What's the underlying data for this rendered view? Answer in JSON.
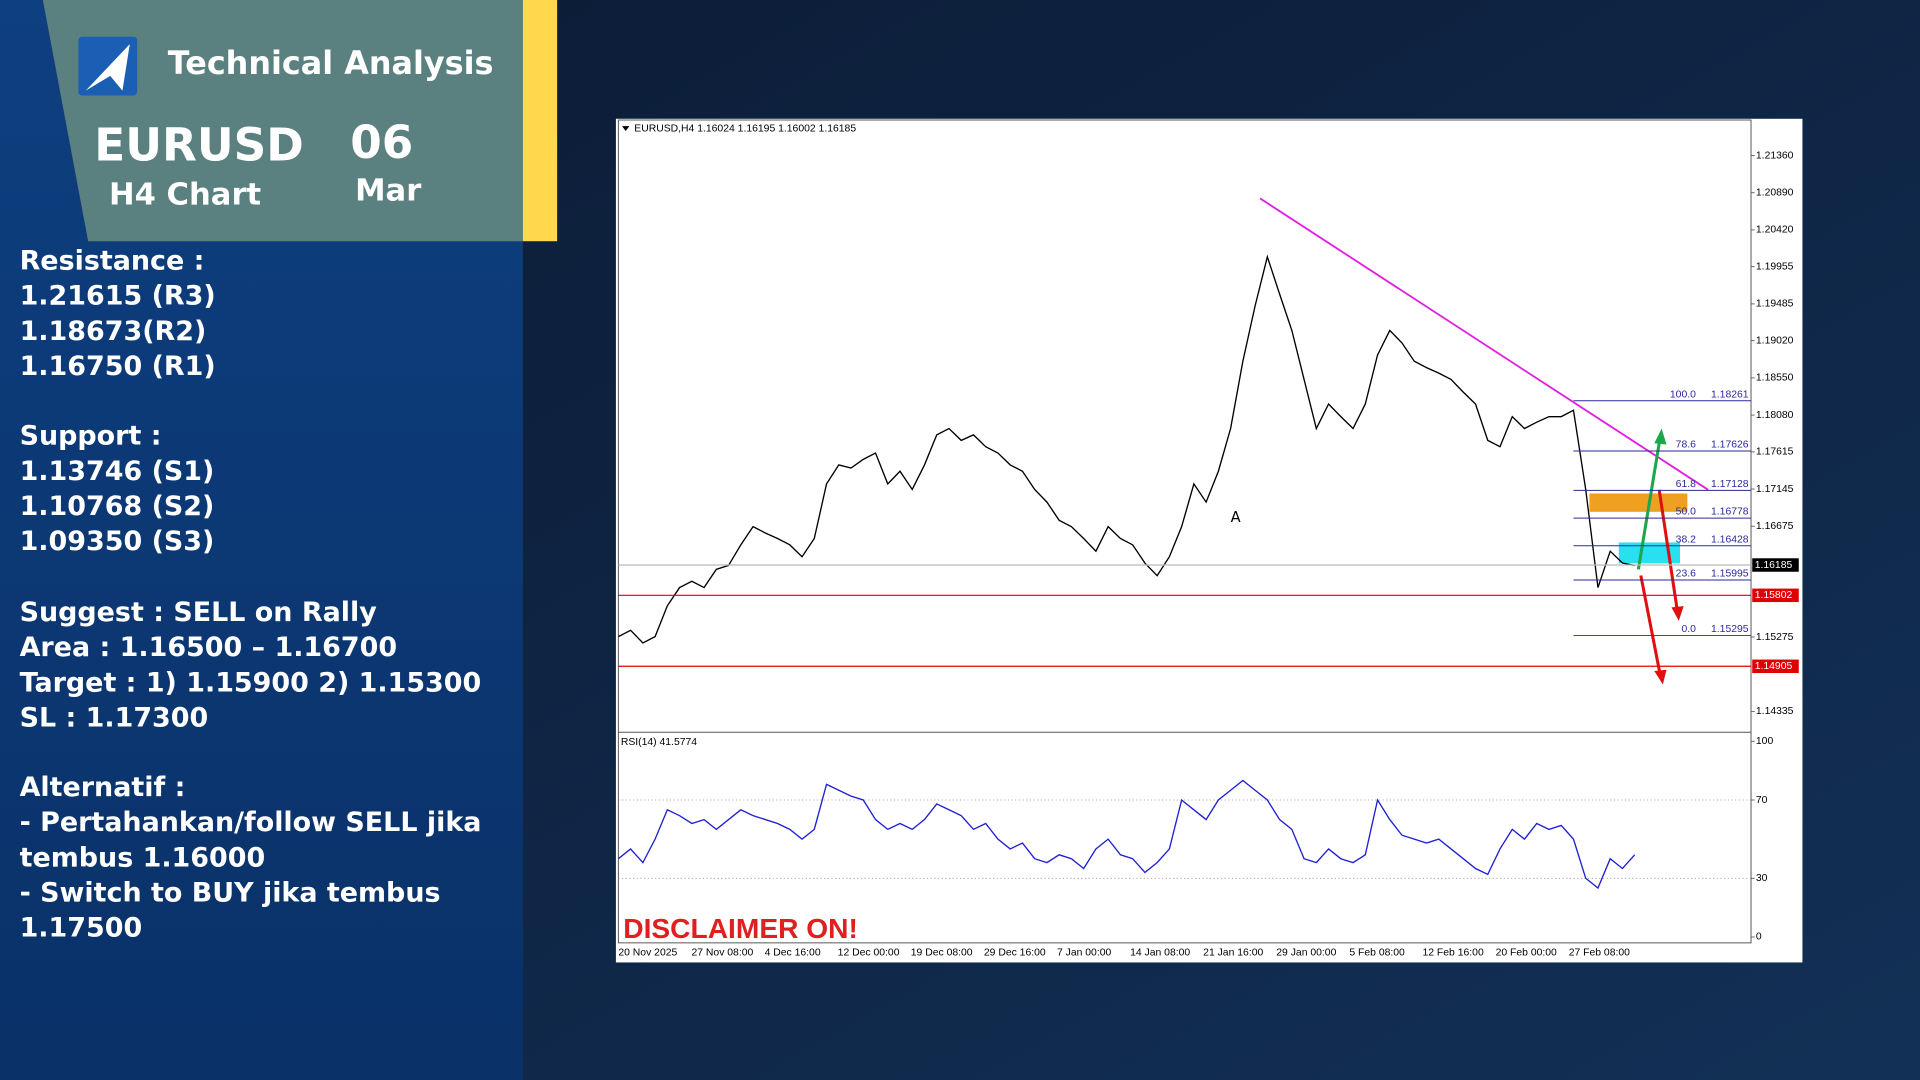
{
  "header": {
    "title": "Technical Analysis",
    "symbol": "EURUSD",
    "timeframe": "H4 Chart",
    "day": "06",
    "month": "Mar"
  },
  "notes": [
    [
      "Resistance :",
      "1.21615 (R3)",
      "1.18673(R2)",
      "1.16750 (R1)"
    ],
    [
      "Support :",
      "1.13746 (S1)",
      "1.10768  (S2)",
      "1.09350  (S3)"
    ],
    [
      "Suggest :  SELL on Rally",
      "Area : 1.16500 – 1.16700",
      "Target : 1) 1.15900 2) 1.15300",
      "SL : 1.17300"
    ],
    [
      "Alternatif :",
      "- Pertahankan/follow SELL jika",
      "tembus 1.16000",
      "- Switch to BUY jika tembus",
      "1.17500"
    ]
  ],
  "chart_data": [
    {
      "type": "line",
      "title": "EURUSD,H4  1.16024 1.16195 1.16002 1.16185",
      "annotation": "A",
      "ylim": [
        1.14087,
        1.21809
      ],
      "yticks": [
        {
          "value": 1.2136,
          "label": "1.21360"
        },
        {
          "value": 1.2089,
          "label": "1.20890"
        },
        {
          "value": 1.2042,
          "label": "1.20420"
        },
        1.19955,
        1.19485,
        {
          "value": 1.1902,
          "label": "1.19020"
        },
        {
          "value": 1.1855,
          "label": "1.18550"
        },
        {
          "value": 1.1808,
          "label": "1.18080"
        },
        1.17615,
        1.17145,
        1.16675,
        1.15275,
        1.14335
      ],
      "series": [
        {
          "color": "#000000",
          "values": [
            1.1528,
            1.1536,
            1.152,
            1.1528,
            1.1567,
            1.159,
            1.1598,
            1.159,
            1.1613,
            1.1618,
            1.1644,
            1.1667,
            1.1659,
            1.1652,
            1.1644,
            1.1629,
            1.1652,
            1.1721,
            1.1745,
            1.1741,
            1.1752,
            1.176,
            1.1721,
            1.1737,
            1.1714,
            1.1745,
            1.1783,
            1.1791,
            1.1776,
            1.1783,
            1.1768,
            1.176,
            1.1745,
            1.1737,
            1.1714,
            1.1698,
            1.1675,
            1.1667,
            1.1652,
            1.1636,
            1.1667,
            1.1652,
            1.1644,
            1.1621,
            1.1605,
            1.1629,
            1.1667,
            1.1721,
            1.1698,
            1.1737,
            1.1791,
            1.1876,
            1.1946,
            1.2008,
            1.1961,
            1.1915,
            1.1853,
            1.1791,
            1.1822,
            1.1806,
            1.1791,
            1.1822,
            1.1884,
            1.1915,
            1.1899,
            1.1876,
            1.1868,
            1.1861,
            1.1853,
            1.1837,
            1.1822,
            1.1776,
            1.1768,
            1.1806,
            1.1791,
            1.1799,
            1.1806,
            1.1806,
            1.1814,
            1.1714,
            1.159,
            1.1636,
            1.1621,
            1.1618
          ]
        }
      ],
      "levels": [
        {
          "value": 1.16185,
          "color": "#000000"
        },
        {
          "value": 1.15802,
          "color": "#e00000"
        },
        {
          "value": 1.14905,
          "color": "#e00000"
        }
      ],
      "fibonacci": [
        {
          "level": {
            "value": 100,
            "label": "100.0"
          },
          "price": 1.18261
        },
        {
          "level": 78.6,
          "price": 1.17626
        },
        {
          "level": 61.8,
          "price": 1.17128
        },
        {
          "level": {
            "value": 50,
            "label": "50.0"
          },
          "price": 1.16778
        },
        {
          "level": 38.2,
          "price": 1.16428
        },
        {
          "level": 23.6,
          "price": 1.15995
        },
        {
          "level": {
            "value": 0,
            "label": "0.0"
          },
          "price": 1.15295
        }
      ]
    },
    {
      "type": "line",
      "title": "RSI(14) 41.5774",
      "annotation": "DISCLAIMER ON!",
      "ylim": [
        -3,
        104
      ],
      "yticks": [
        0,
        30,
        70,
        100
      ],
      "series": [
        {
          "color": "#1f1fd6",
          "values": [
            40,
            45,
            38,
            50,
            65,
            62,
            58,
            60,
            55,
            60,
            65,
            62,
            60,
            58,
            55,
            50,
            55,
            78,
            75,
            72,
            70,
            60,
            55,
            58,
            55,
            60,
            68,
            65,
            62,
            55,
            58,
            50,
            45,
            48,
            40,
            38,
            42,
            40,
            35,
            45,
            50,
            42,
            40,
            33,
            38,
            45,
            70,
            65,
            60,
            70,
            75,
            80,
            75,
            70,
            60,
            55,
            40,
            38,
            45,
            40,
            38,
            42,
            70,
            60,
            52,
            50,
            48,
            50,
            45,
            40,
            35,
            32,
            45,
            55,
            50,
            58,
            55,
            57,
            50,
            30,
            25,
            40,
            35,
            42
          ]
        }
      ],
      "x_labels": [
        "20 Nov 2025",
        "27 Nov 08:00",
        "4 Dec 16:00",
        "12 Dec 00:00",
        "19 Dec 08:00",
        "29 Dec 16:00",
        "7 Jan 00:00",
        "14 Jan 08:00",
        "21 Jan 16:00",
        "29 Jan 00:00",
        "5 Feb 08:00",
        "12 Feb 16:00",
        "20 Feb 00:00",
        "27 Feb 08:00"
      ]
    }
  ]
}
